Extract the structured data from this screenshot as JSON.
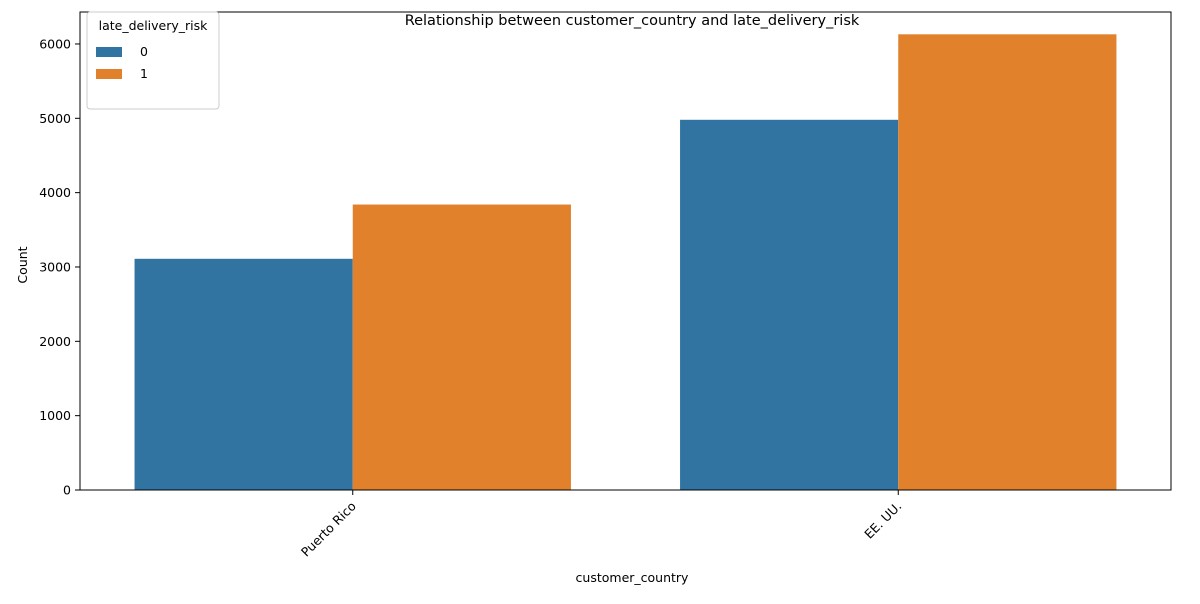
{
  "chart_data": {
    "type": "bar",
    "title": "Relationship between customer_country and late_delivery_risk",
    "xlabel": "customer_country",
    "ylabel": "Count",
    "categories": [
      "Puerto Rico",
      "EE. UU."
    ],
    "series": [
      {
        "name": "0",
        "values": [
          3110,
          4980
        ],
        "color": "#3274a1"
      },
      {
        "name": "1",
        "values": [
          3840,
          6130
        ],
        "color": "#e1812c"
      }
    ],
    "ylim": [
      0,
      6430
    ],
    "yticks": [
      0,
      1000,
      2000,
      3000,
      4000,
      5000,
      6000
    ],
    "legend": {
      "title": "late_delivery_risk",
      "placement": "top-left"
    },
    "grid": false
  }
}
